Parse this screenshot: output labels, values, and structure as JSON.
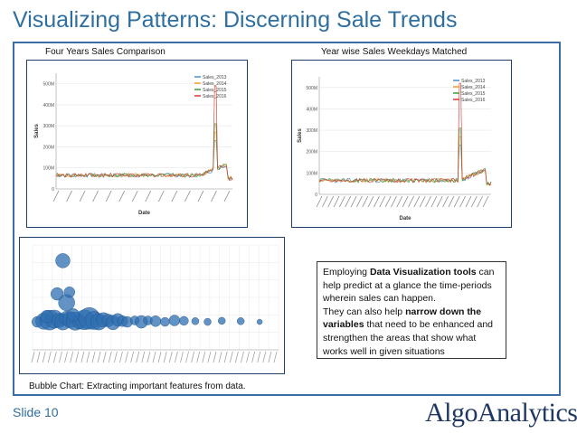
{
  "slide": {
    "title": "Visualizing Patterns: Discerning Sale Trends",
    "number_label": "Slide  10",
    "logo_text": "AlgoAnalytics"
  },
  "captions": {
    "chart1": "Four Years Sales Comparison",
    "chart2": "Year wise Sales Weekdays Matched",
    "bubble": "Bubble Chart: Extracting important features from data."
  },
  "textbox": {
    "p1_pre": "Employing ",
    "p1_bold": "Data Visualization tools",
    "p1_post": " can help predict at a glance the time-periods wherein sales can happen.",
    "p2_pre": "They can also help ",
    "p2_bold": "narrow down the variables",
    "p2_post": " that need to be enhanced and strengthen the areas that show what works well in given situations"
  },
  "colors": {
    "accent": "#2f6f9f",
    "frame": "#3a6ea5",
    "series": [
      "#4a90c8",
      "#f0a030",
      "#3a9a3a",
      "#d63b2f"
    ],
    "bubble": "#2f6fb0"
  },
  "chart_data": [
    {
      "type": "line",
      "title": "",
      "xlabel": "Date",
      "ylabel": "Sales",
      "yticks": [
        "0",
        "100M",
        "200M",
        "300M",
        "400M",
        "500M"
      ],
      "ylim": [
        0,
        550
      ],
      "series": [
        {
          "name": "Sales_2013"
        },
        {
          "name": "Sales_2014"
        },
        {
          "name": "Sales_2015"
        },
        {
          "name": "Sales_2016"
        }
      ],
      "spike_value": 490,
      "legend": "top-right"
    },
    {
      "type": "line",
      "title": "",
      "xlabel": "Date",
      "ylabel": "Sales",
      "yticks": [
        "0",
        "100M",
        "200M",
        "300M",
        "400M",
        "500M"
      ],
      "ylim": [
        0,
        550
      ],
      "series": [
        {
          "name": "Sales_2013"
        },
        {
          "name": "Sales_2014"
        },
        {
          "name": "Sales_2015"
        },
        {
          "name": "Sales_2016"
        }
      ],
      "spike_value": 520,
      "legend": "top-right"
    },
    {
      "type": "scatter",
      "title": "",
      "points": [
        {
          "x": 0.5,
          "y": 0.8,
          "r": 6
        },
        {
          "x": 1.2,
          "y": 0.82,
          "r": 9
        },
        {
          "x": 1.8,
          "y": 0.85,
          "r": 11
        },
        {
          "x": 2.3,
          "y": 0.88,
          "r": 10
        },
        {
          "x": 2.8,
          "y": 0.84,
          "r": 8
        },
        {
          "x": 3.2,
          "y": 0.8,
          "r": 9
        },
        {
          "x": 3.6,
          "y": 0.9,
          "r": 8
        },
        {
          "x": 4.0,
          "y": 0.86,
          "r": 9
        },
        {
          "x": 4.5,
          "y": 0.82,
          "r": 10
        },
        {
          "x": 5.0,
          "y": 0.8,
          "r": 8
        },
        {
          "x": 5.5,
          "y": 0.86,
          "r": 11
        },
        {
          "x": 6.0,
          "y": 0.9,
          "r": 12
        },
        {
          "x": 6.5,
          "y": 0.84,
          "r": 10
        },
        {
          "x": 7.0,
          "y": 0.8,
          "r": 9
        },
        {
          "x": 7.5,
          "y": 0.86,
          "r": 8
        },
        {
          "x": 8.0,
          "y": 0.84,
          "r": 7
        },
        {
          "x": 8.5,
          "y": 0.78,
          "r": 8
        },
        {
          "x": 9.0,
          "y": 0.86,
          "r": 7
        },
        {
          "x": 9.5,
          "y": 0.82,
          "r": 6
        },
        {
          "x": 10.0,
          "y": 0.8,
          "r": 6
        },
        {
          "x": 10.8,
          "y": 0.84,
          "r": 5
        },
        {
          "x": 11.5,
          "y": 0.8,
          "r": 7
        },
        {
          "x": 12.2,
          "y": 0.84,
          "r": 5
        },
        {
          "x": 13.0,
          "y": 0.82,
          "r": 6
        },
        {
          "x": 14.0,
          "y": 0.8,
          "r": 5
        },
        {
          "x": 15.0,
          "y": 0.84,
          "r": 6
        },
        {
          "x": 16.0,
          "y": 0.83,
          "r": 5
        },
        {
          "x": 17.2,
          "y": 0.82,
          "r": 4
        },
        {
          "x": 18.5,
          "y": 0.8,
          "r": 4
        },
        {
          "x": 20.0,
          "y": 0.83,
          "r": 4
        },
        {
          "x": 22.0,
          "y": 0.82,
          "r": 4
        },
        {
          "x": 24.0,
          "y": 0.8,
          "r": 3
        },
        {
          "x": 2.6,
          "y": 1.6,
          "r": 7
        },
        {
          "x": 3.6,
          "y": 1.35,
          "r": 9
        },
        {
          "x": 3.9,
          "y": 1.65,
          "r": 6
        },
        {
          "x": 4.3,
          "y": 1.0,
          "r": 7
        },
        {
          "x": 1.5,
          "y": 0.95,
          "r": 7
        },
        {
          "x": 3.2,
          "y": 2.55,
          "r": 8
        }
      ],
      "ylim": [
        0,
        3
      ],
      "xlim": [
        0,
        26
      ]
    }
  ]
}
